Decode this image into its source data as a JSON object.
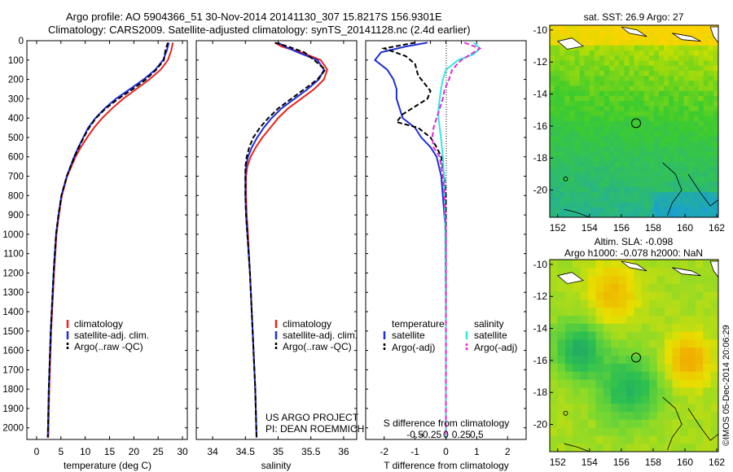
{
  "header": {
    "title_line1": "Argo profile: AO 5904366_51 30-Nov-2014 20141130_307 15.8217S 156.9301E",
    "title_line2": "Climatology: CARS2009. Satellite-adjusted climatology: synTS_20141128.nc (2.4d earlier)"
  },
  "colors": {
    "climatology": "#e8231c",
    "satellite": "#1c2fd8",
    "argo": "#000000",
    "satellite_s": "#33e6e6",
    "argo_s": "#e22ad4"
  },
  "chart_data": [
    {
      "type": "line",
      "id": "temperature",
      "xlabel": "temperature (deg C)",
      "ylabel": "depth",
      "xlim": [
        -2,
        31
      ],
      "ylim": [
        0,
        2060
      ],
      "xticks": [
        0,
        5,
        10,
        15,
        20,
        25,
        30
      ],
      "yticks": [
        0,
        100,
        200,
        300,
        400,
        500,
        600,
        700,
        800,
        900,
        1000,
        1100,
        1200,
        1300,
        1400,
        1500,
        1600,
        1700,
        1800,
        1900,
        2000
      ],
      "legend": [
        "climatology",
        "satellite-adj. clim.",
        "Argo(..raw -QC)"
      ],
      "series": [
        {
          "name": "climatology",
          "color": "#e8231c",
          "depth": [
            10,
            50,
            100,
            150,
            200,
            250,
            300,
            350,
            400,
            450,
            500,
            550,
            600,
            700,
            800,
            900,
            1000,
            1200,
            1500,
            1800,
            2050
          ],
          "values": [
            28.0,
            27.7,
            27.0,
            25.5,
            23.2,
            20.5,
            17.8,
            15.5,
            13.5,
            11.8,
            10.4,
            9.1,
            8.0,
            6.3,
            5.2,
            4.6,
            4.1,
            3.6,
            3.0,
            2.6,
            2.4
          ]
        },
        {
          "name": "satellite-adj. clim.",
          "color": "#1c2fd8",
          "depth": [
            10,
            50,
            100,
            150,
            200,
            250,
            300,
            350,
            400,
            450,
            500,
            550,
            600,
            700,
            800,
            900,
            1000,
            1200,
            1500,
            1800,
            2050
          ],
          "values": [
            27.2,
            26.8,
            26.0,
            24.4,
            22.0,
            19.2,
            16.3,
            14.0,
            12.1,
            10.6,
            9.6,
            8.6,
            7.7,
            6.2,
            5.1,
            4.5,
            4.0,
            3.5,
            2.9,
            2.5,
            2.3
          ]
        },
        {
          "name": "Argo(..raw -QC)",
          "color": "#000000",
          "depth": [
            10,
            50,
            100,
            150,
            200,
            250,
            300,
            350,
            400,
            450,
            500,
            550,
            600,
            700,
            800,
            900,
            1000,
            1200,
            1500,
            1800,
            2050
          ],
          "values": [
            27.0,
            26.5,
            26.2,
            24.6,
            22.5,
            19.8,
            16.8,
            14.2,
            12.2,
            10.8,
            9.7,
            8.7,
            7.8,
            6.2,
            5.1,
            4.5,
            4.0,
            3.5,
            2.9,
            2.5,
            2.3
          ]
        }
      ]
    },
    {
      "type": "line",
      "id": "salinity",
      "xlabel": "salinity",
      "xlim": [
        33.75,
        36.2
      ],
      "ylim": [
        0,
        2060
      ],
      "xticks": [
        34,
        34.5,
        35,
        35.5,
        36
      ],
      "xticklabels": [
        "34",
        "34.5",
        "35",
        "35.5",
        "36"
      ],
      "legend": [
        "climatology",
        "satellite-adj. clim.",
        "Argo(..raw -QC)"
      ],
      "series": [
        {
          "name": "climatology",
          "color": "#e8231c",
          "depth": [
            10,
            30,
            60,
            100,
            150,
            200,
            250,
            300,
            350,
            400,
            450,
            500,
            550,
            600,
            650,
            700,
            800,
            900,
            1000,
            1200,
            1500,
            1800,
            2050
          ],
          "values": [
            34.95,
            35.05,
            35.35,
            35.65,
            35.75,
            35.7,
            35.55,
            35.35,
            35.15,
            35.0,
            34.88,
            34.76,
            34.66,
            34.58,
            34.53,
            34.51,
            34.51,
            34.52,
            34.54,
            34.57,
            34.61,
            34.65,
            34.67
          ]
        },
        {
          "name": "satellite-adj. clim.",
          "color": "#1c2fd8",
          "depth": [
            10,
            30,
            60,
            100,
            150,
            200,
            250,
            300,
            350,
            400,
            450,
            500,
            550,
            600,
            650,
            700,
            800,
            900,
            1000,
            1200,
            1500,
            1800,
            2050
          ],
          "values": [
            35.0,
            35.1,
            35.3,
            35.6,
            35.7,
            35.62,
            35.45,
            35.25,
            35.05,
            34.9,
            34.78,
            34.68,
            34.6,
            34.54,
            34.51,
            34.5,
            34.5,
            34.51,
            34.53,
            34.57,
            34.61,
            34.65,
            34.67
          ]
        },
        {
          "name": "Argo(..raw -QC)",
          "color": "#000000",
          "depth": [
            10,
            30,
            60,
            100,
            150,
            200,
            250,
            300,
            350,
            400,
            450,
            500,
            550,
            600,
            650,
            700,
            800,
            900,
            1000,
            1200,
            1500,
            1800,
            2050
          ],
          "values": [
            34.95,
            35.15,
            35.4,
            35.55,
            35.72,
            35.6,
            35.4,
            35.2,
            35.0,
            34.85,
            34.72,
            34.62,
            34.56,
            34.52,
            34.5,
            34.5,
            34.5,
            34.51,
            34.53,
            34.57,
            34.61,
            34.65,
            34.67
          ]
        }
      ],
      "annotation": [
        "US ARGO PROJECT",
        "PI: DEAN ROEMMICH"
      ]
    },
    {
      "type": "line",
      "id": "difference",
      "xlabel": "T difference from climatology",
      "top_axis_label": "S difference from climatology",
      "xlim": [
        -2.6,
        2.6
      ],
      "ylim": [
        0,
        2060
      ],
      "xticks": [
        -2,
        -1,
        0,
        1,
        2
      ],
      "xticklabels": [
        "-2",
        "-1",
        "0",
        "1",
        "2"
      ],
      "s_ticks": [
        -0.5,
        -0.25,
        0,
        0.25,
        0.5
      ],
      "s_ticklabels": [
        "-0.5",
        "-0.25",
        "0",
        "0.25",
        "0.5"
      ],
      "legend_titles": [
        "temperature",
        "salinity"
      ],
      "legend": [
        "satellite",
        "Argo(-adj)",
        "satellite",
        "Argo(-adj)"
      ],
      "series": [
        {
          "name": "T satellite",
          "color": "#1c2fd8",
          "depth": [
            10,
            30,
            60,
            100,
            150,
            200,
            250,
            300,
            350,
            400,
            450,
            500,
            550,
            600,
            700,
            800,
            900,
            1000,
            1500,
            2050
          ],
          "values": [
            -0.6,
            -1.3,
            -2.1,
            -2.3,
            -1.9,
            -1.7,
            -1.6,
            -1.6,
            -1.5,
            -1.4,
            -1.0,
            -0.8,
            -0.5,
            -0.3,
            -0.15,
            -0.1,
            -0.05,
            0,
            0,
            0
          ]
        },
        {
          "name": "T Argo(-adj)",
          "color": "#000000",
          "depth": [
            10,
            40,
            80,
            120,
            180,
            220,
            260,
            300,
            340,
            380,
            420,
            450,
            500,
            550,
            600,
            700,
            800,
            1000,
            1500,
            2050
          ],
          "values": [
            -1.0,
            -2.0,
            -1.3,
            -1.0,
            -0.9,
            -0.7,
            -0.5,
            -0.6,
            -1.0,
            -1.4,
            -1.6,
            -0.9,
            -0.5,
            -0.3,
            -0.15,
            -0.05,
            0,
            0,
            0,
            0
          ]
        },
        {
          "name": "S satellite",
          "color": "#33e6e6",
          "depth": [
            10,
            40,
            70,
            100,
            150,
            200,
            250,
            300,
            350,
            400,
            450,
            500,
            600,
            700,
            800,
            1000,
            1500,
            2050
          ],
          "values": [
            0.45,
            0.55,
            0.45,
            0.2,
            0.0,
            -0.05,
            -0.08,
            -0.1,
            -0.12,
            -0.12,
            -0.1,
            -0.08,
            -0.05,
            -0.03,
            -0.02,
            -0.01,
            0,
            0
          ]
        },
        {
          "name": "S Argo(-adj)",
          "color": "#e22ad4",
          "depth": [
            10,
            40,
            70,
            100,
            150,
            200,
            250,
            300,
            350,
            400,
            450,
            500,
            550,
            600,
            700,
            800,
            1000,
            1500,
            2050
          ],
          "values": [
            0.3,
            0.55,
            0.4,
            0.25,
            0.1,
            0.05,
            -0.02,
            -0.05,
            -0.1,
            -0.15,
            -0.2,
            -0.22,
            -0.2,
            -0.1,
            -0.05,
            -0.02,
            0,
            0,
            0
          ]
        }
      ]
    },
    {
      "type": "heatmap",
      "id": "sst_map",
      "title": "sat. SST: 26.9 Argo: 27",
      "xlim": [
        151.5,
        162.1
      ],
      "ylim": [
        -21.7,
        -9.7
      ],
      "xticks": [
        152,
        154,
        156,
        158,
        160,
        162
      ],
      "yticks": [
        -10,
        -12,
        -14,
        -16,
        -18,
        -20
      ],
      "marker": {
        "lon": 156.93,
        "lat": -15.82
      }
    },
    {
      "type": "heatmap",
      "id": "sla_map",
      "title_line1": "Altim. SLA: -0.098",
      "title_line2": "Argo h1000: -0.078 h2000: NaN",
      "xlim": [
        151.5,
        162.1
      ],
      "ylim": [
        -21.7,
        -9.7
      ],
      "xticks": [
        152,
        154,
        156,
        158,
        160,
        162
      ],
      "yticks": [
        -10,
        -12,
        -14,
        -16,
        -18,
        -20
      ],
      "marker": {
        "lon": 156.93,
        "lat": -15.82
      }
    }
  ],
  "footer": {
    "credit": "©IMOS 05-Dec-2014 20:06:29"
  }
}
